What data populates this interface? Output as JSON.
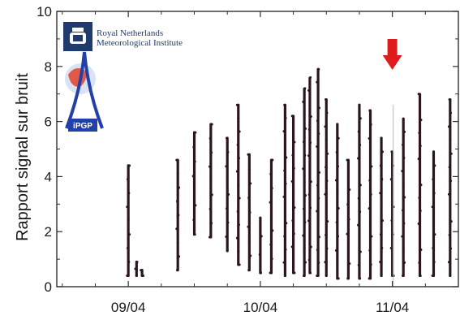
{
  "chart_data": {
    "type": "scatter",
    "title": "",
    "xlabel": "",
    "ylabel": "Rapport signal sur bruit",
    "ylim": [
      0,
      10
    ],
    "yticks": [
      "0",
      "2",
      "4",
      "6",
      "8",
      "10"
    ],
    "xlim": [
      "2008-04-08 11:00",
      "2008-04-11 12:00"
    ],
    "xticks": [
      "09/04",
      "10/04",
      "11/04"
    ],
    "grid": false,
    "legend": "none",
    "marker_color": "#2a1520",
    "arrow_color": "#e01b1b",
    "arrow_direction": "down",
    "arrow_at_x": "11/04",
    "bursts": [
      {
        "x": "09/04 00:00",
        "peak": 4.4,
        "base": 0.4
      },
      {
        "x": "09/04 01:30",
        "peak": 0.9,
        "base": 0.4
      },
      {
        "x": "09/04 02:30",
        "peak": 0.6,
        "base": 0.4
      },
      {
        "x": "09/04 09:00",
        "peak": 4.6,
        "base": 0.6
      },
      {
        "x": "09/04 12:00",
        "peak": 5.6,
        "base": 1.9
      },
      {
        "x": "09/04 15:00",
        "peak": 5.9,
        "base": 1.8
      },
      {
        "x": "09/04 18:00",
        "peak": 5.4,
        "base": 1.3
      },
      {
        "x": "09/04 20:00",
        "peak": 6.6,
        "base": 0.8
      },
      {
        "x": "09/04 22:00",
        "peak": 4.8,
        "base": 0.6
      },
      {
        "x": "10/04 00:00",
        "peak": 2.5,
        "base": 0.5
      },
      {
        "x": "10/04 02:00",
        "peak": 4.6,
        "base": 0.5
      },
      {
        "x": "10/04 04:30",
        "peak": 6.6,
        "base": 0.4
      },
      {
        "x": "10/04 06:00",
        "peak": 6.2,
        "base": 0.5
      },
      {
        "x": "10/04 08:00",
        "peak": 7.2,
        "base": 0.4
      },
      {
        "x": "10/04 09:00",
        "peak": 7.6,
        "base": 0.5
      },
      {
        "x": "10/04 10:30",
        "peak": 7.9,
        "base": 0.4
      },
      {
        "x": "10/04 12:00",
        "peak": 6.8,
        "base": 0.4
      },
      {
        "x": "10/04 14:00",
        "peak": 5.9,
        "base": 0.3
      },
      {
        "x": "10/04 16:00",
        "peak": 4.6,
        "base": 0.3
      },
      {
        "x": "10/04 18:00",
        "peak": 6.6,
        "base": 0.3
      },
      {
        "x": "10/04 20:00",
        "peak": 6.4,
        "base": 0.3
      },
      {
        "x": "10/04 22:00",
        "peak": 5.4,
        "base": 0.4
      },
      {
        "x": "11/04 00:00",
        "peak": 4.9,
        "base": 0.4
      },
      {
        "x": "11/04 02:00",
        "peak": 6.1,
        "base": 0.4
      },
      {
        "x": "11/04 05:00",
        "peak": 7.0,
        "base": 0.4
      },
      {
        "x": "11/04 07:30",
        "peak": 4.9,
        "base": 0.4
      },
      {
        "x": "11/04 10:30",
        "peak": 6.8,
        "base": 0.4
      }
    ]
  },
  "logos": {
    "knmi": {
      "line1": "Royal Netherlands",
      "line2": "Meteorological Institute",
      "color": "#1f3a6e"
    },
    "ipgp": {
      "text": "iPGP",
      "color": "#2340a8"
    }
  }
}
